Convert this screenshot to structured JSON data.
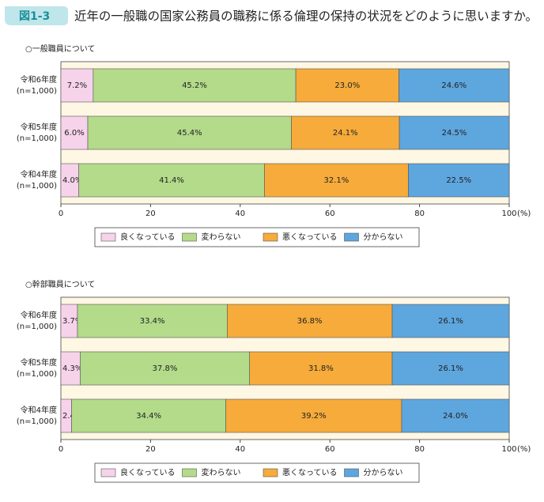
{
  "header": {
    "label": "図1-3",
    "title": "近年の一般職の国家公務員の職務に係る倫理の保持の状況をどのように思いますか。"
  },
  "chart_data": [
    {
      "type": "stacked-bar",
      "subtitle": "○一般職員について",
      "categories": [
        [
          "令和6年度",
          "(n=1,000)"
        ],
        [
          "令和5年度",
          "(n=1,000)"
        ],
        [
          "令和4年度",
          "(n=1,000)"
        ]
      ],
      "series": [
        {
          "name": "良くなっている",
          "color": "#f6d3ea",
          "values": [
            7.2,
            6.0,
            4.0
          ],
          "value_labels": [
            "7.2%",
            "6.0%",
            "4.0%"
          ]
        },
        {
          "name": "変わらない",
          "color": "#b3db8a",
          "values": [
            45.2,
            45.4,
            41.4
          ],
          "value_labels": [
            "45.2%",
            "45.4%",
            "41.4%"
          ]
        },
        {
          "name": "悪くなっている",
          "color": "#f6ab3a",
          "values": [
            23.0,
            24.1,
            32.1
          ],
          "value_labels": [
            "23.0%",
            "24.1%",
            "32.1%"
          ]
        },
        {
          "name": "分からない",
          "color": "#5ea6de",
          "values": [
            24.6,
            24.5,
            22.5
          ],
          "value_labels": [
            "24.6%",
            "24.5%",
            "22.5%"
          ]
        }
      ],
      "xlim": [
        0,
        100
      ],
      "xticks": [
        0,
        20,
        40,
        60,
        80,
        100
      ],
      "xlabel": "(%)"
    },
    {
      "type": "stacked-bar",
      "subtitle": "○幹部職員について",
      "categories": [
        [
          "令和6年度",
          "(n=1,000)"
        ],
        [
          "令和5年度",
          "(n=1,000)"
        ],
        [
          "令和4年度",
          "(n=1,000)"
        ]
      ],
      "series": [
        {
          "name": "良くなっている",
          "color": "#f6d3ea",
          "values": [
            3.7,
            4.3,
            2.4
          ],
          "value_labels": [
            "3.7%",
            "4.3%",
            "2.4%"
          ]
        },
        {
          "name": "変わらない",
          "color": "#b3db8a",
          "values": [
            33.4,
            37.8,
            34.4
          ],
          "value_labels": [
            "33.4%",
            "37.8%",
            "34.4%"
          ]
        },
        {
          "name": "悪くなっている",
          "color": "#f6ab3a",
          "values": [
            36.8,
            31.8,
            39.2
          ],
          "value_labels": [
            "36.8%",
            "31.8%",
            "39.2%"
          ]
        },
        {
          "name": "分からない",
          "color": "#5ea6de",
          "values": [
            26.1,
            26.1,
            24.0
          ],
          "value_labels": [
            "26.1%",
            "26.1%",
            "24.0%"
          ]
        }
      ],
      "xlim": [
        0,
        100
      ],
      "xticks": [
        0,
        20,
        40,
        60,
        80,
        100
      ],
      "xlabel": "(%)"
    }
  ]
}
